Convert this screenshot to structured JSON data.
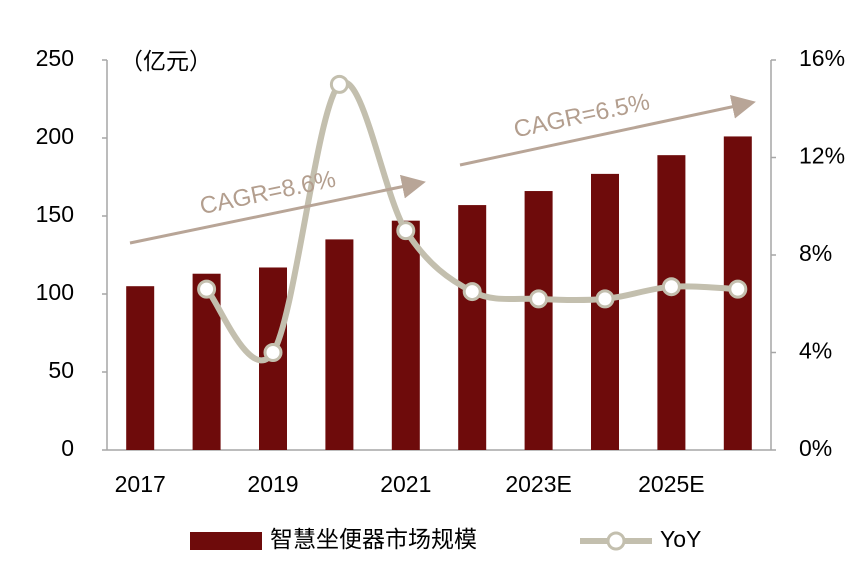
{
  "chart_data": {
    "type": "bar",
    "unit": "（亿元）",
    "annotations": [
      "CAGR=8.6%",
      "CAGR=6.5%"
    ],
    "categories": [
      "2017",
      null,
      "2019",
      null,
      "2021",
      null,
      "2023E",
      null,
      "2025E",
      null
    ],
    "series": [
      {
        "name": "智慧坐便器市场规模",
        "type": "bar",
        "color": "#6e0b0b",
        "values": [
          105,
          113,
          117,
          135,
          147,
          157,
          166,
          177,
          189,
          201
        ]
      },
      {
        "name": "YoY",
        "type": "line",
        "axis": "y2",
        "color": "#c3bfae",
        "values": [
          null,
          6.6,
          4.0,
          15.0,
          9.0,
          6.5,
          6.2,
          6.2,
          6.7,
          6.6
        ]
      }
    ],
    "ylim": [
      0,
      250
    ],
    "yticks": [
      0,
      50,
      100,
      150,
      200,
      250
    ],
    "y2lim": [
      0,
      16
    ],
    "y2ticks": [
      {
        "value": 0,
        "label": "0%"
      },
      {
        "value": 4,
        "label": "4%"
      },
      {
        "value": 8,
        "label": "8%"
      },
      {
        "value": 12,
        "label": "12%"
      },
      {
        "value": 16,
        "label": "16%"
      }
    ],
    "legend": "bottom"
  }
}
